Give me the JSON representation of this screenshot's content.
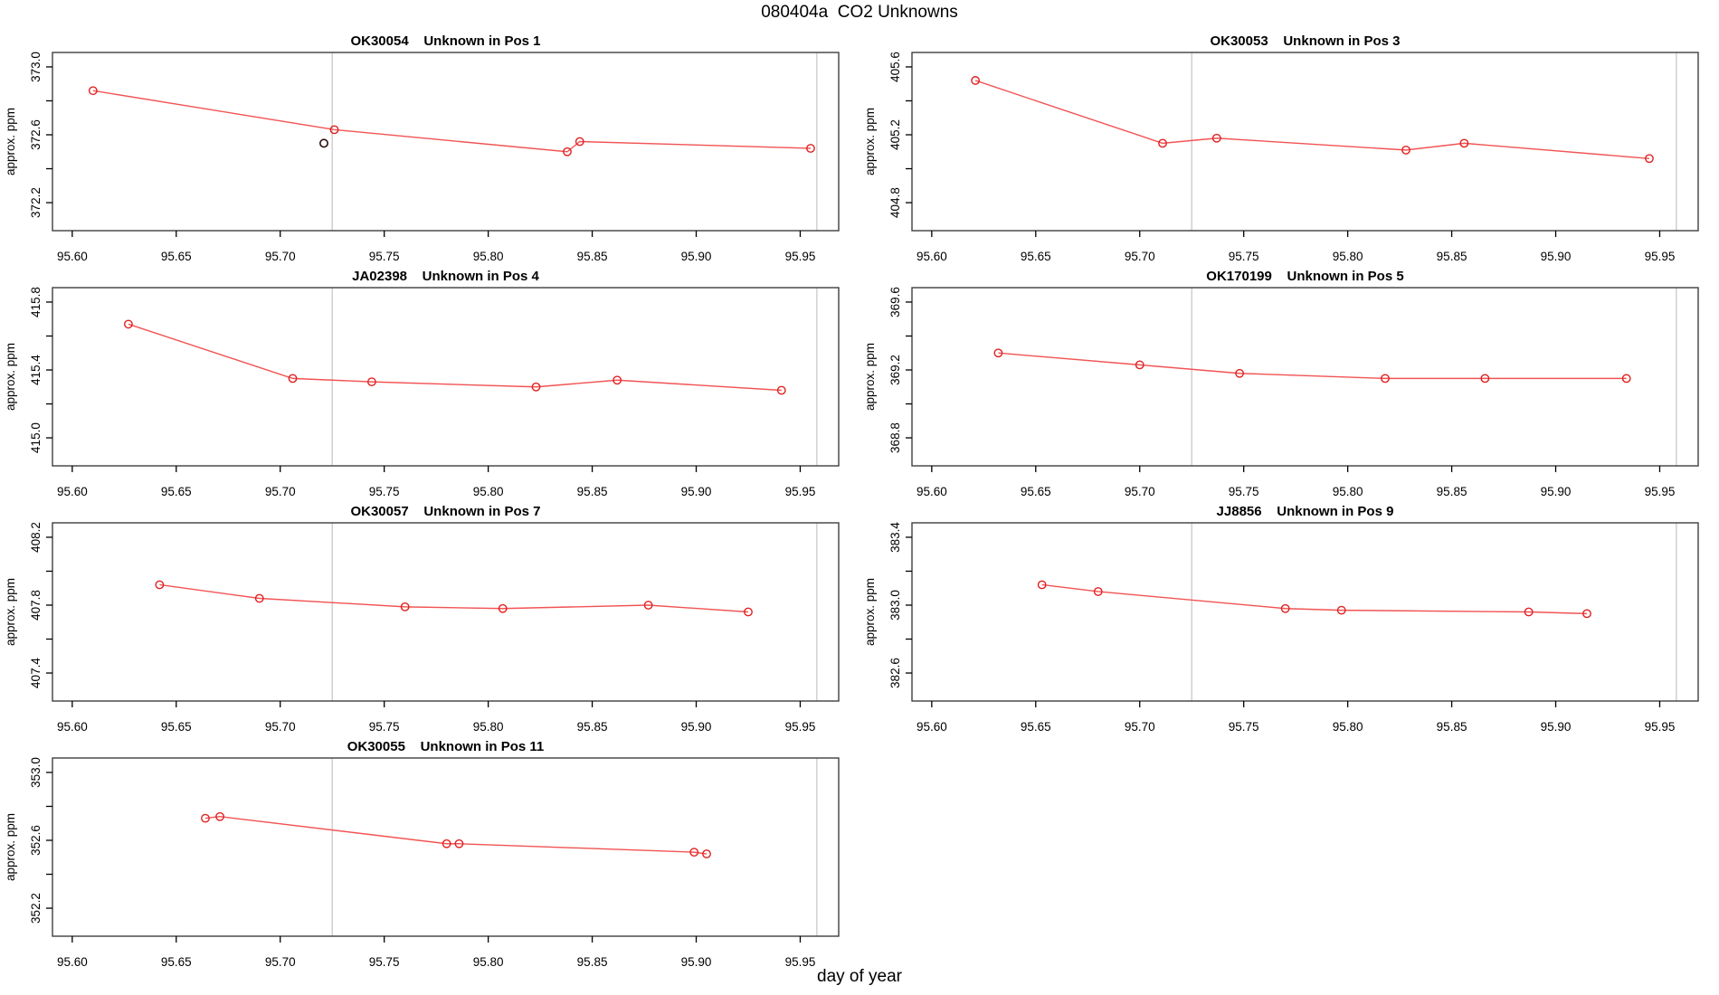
{
  "figure_title": "080404a  CO2 Unknowns",
  "xlabel": "day of year",
  "ylabel": "approx. ppm",
  "colors": {
    "series_line": "#f25353",
    "series_marker": "#e02020",
    "black_marker": "#2b1111",
    "reference_line": "#c9c9c9",
    "frame": "#3f3f3f",
    "text": "#000000"
  },
  "x_axis": {
    "lim": [
      95.5905,
      95.9685
    ],
    "ticks": [
      95.6,
      95.65,
      95.7,
      95.75,
      95.8,
      95.85,
      95.9,
      95.95
    ],
    "tick_labels": [
      "95.60",
      "95.65",
      "95.70",
      "95.75",
      "95.80",
      "95.85",
      "95.90",
      "95.95"
    ],
    "reference_lines": [
      95.725,
      95.958
    ]
  },
  "chart_data": [
    {
      "type": "line",
      "title_code": "OK30054",
      "title_text": "Unknown in Pos 1",
      "grid": [
        0,
        0
      ],
      "ylim": [
        372.035,
        373.085
      ],
      "yticks": [
        372.2,
        372.4,
        372.6,
        372.8,
        373.0
      ],
      "ytick_labels": [
        "372.2",
        "",
        "372.6",
        "",
        "373.0"
      ],
      "x": [
        95.61,
        95.726,
        95.838,
        95.844,
        95.955
      ],
      "y": [
        372.86,
        372.63,
        372.5,
        372.56,
        372.52
      ],
      "black_points": [
        [
          95.721,
          372.55
        ]
      ]
    },
    {
      "type": "line",
      "title_code": "OK30053",
      "title_text": "Unknown in Pos 3",
      "grid": [
        0,
        1
      ],
      "ylim": [
        404.635,
        405.685
      ],
      "yticks": [
        404.8,
        405.0,
        405.2,
        405.4,
        405.6
      ],
      "ytick_labels": [
        "404.8",
        "",
        "405.2",
        "",
        "405.6"
      ],
      "x": [
        95.621,
        95.711,
        95.737,
        95.828,
        95.856,
        95.945
      ],
      "y": [
        405.52,
        405.15,
        405.18,
        405.11,
        405.15,
        405.06
      ],
      "black_points": []
    },
    {
      "type": "line",
      "title_code": "JA02398",
      "title_text": "Unknown in Pos 4",
      "grid": [
        1,
        0
      ],
      "ylim": [
        414.835,
        415.885
      ],
      "yticks": [
        415.0,
        415.2,
        415.4,
        415.6,
        415.8
      ],
      "ytick_labels": [
        "415.0",
        "",
        "415.4",
        "",
        "415.8"
      ],
      "x": [
        95.627,
        95.706,
        95.744,
        95.823,
        95.862,
        95.941
      ],
      "y": [
        415.67,
        415.35,
        415.33,
        415.3,
        415.34,
        415.28
      ],
      "black_points": []
    },
    {
      "type": "line",
      "title_code": "OK170199",
      "title_text": "Unknown in Pos 5",
      "grid": [
        1,
        1
      ],
      "ylim": [
        368.635,
        369.685
      ],
      "yticks": [
        368.8,
        369.0,
        369.2,
        369.4,
        369.6
      ],
      "ytick_labels": [
        "368.8",
        "",
        "369.2",
        "",
        "369.6"
      ],
      "x": [
        95.632,
        95.7,
        95.748,
        95.818,
        95.866,
        95.934
      ],
      "y": [
        369.3,
        369.23,
        369.18,
        369.15,
        369.15,
        369.15
      ],
      "black_points": []
    },
    {
      "type": "line",
      "title_code": "OK30057",
      "title_text": "Unknown in Pos 7",
      "grid": [
        2,
        0
      ],
      "ylim": [
        407.235,
        408.285
      ],
      "yticks": [
        407.4,
        407.6,
        407.8,
        408.0,
        408.2
      ],
      "ytick_labels": [
        "407.4",
        "",
        "407.8",
        "",
        "408.2"
      ],
      "x": [
        95.642,
        95.69,
        95.76,
        95.807,
        95.877,
        95.925
      ],
      "y": [
        407.92,
        407.84,
        407.79,
        407.78,
        407.8,
        407.76
      ],
      "black_points": []
    },
    {
      "type": "line",
      "title_code": "JJ8856",
      "title_text": "Unknown in Pos 9",
      "grid": [
        2,
        1
      ],
      "ylim": [
        382.435,
        383.485
      ],
      "yticks": [
        382.6,
        382.8,
        383.0,
        383.2,
        383.4
      ],
      "ytick_labels": [
        "382.6",
        "",
        "383.0",
        "",
        "383.4"
      ],
      "x": [
        95.653,
        95.68,
        95.77,
        95.797,
        95.887,
        95.915
      ],
      "y": [
        383.12,
        383.08,
        382.98,
        382.97,
        382.96,
        382.95
      ],
      "black_points": []
    },
    {
      "type": "line",
      "title_code": "OK30055",
      "title_text": "Unknown in Pos 11",
      "grid": [
        3,
        0
      ],
      "ylim": [
        352.035,
        353.085
      ],
      "yticks": [
        352.2,
        352.4,
        352.6,
        352.8,
        353.0
      ],
      "ytick_labels": [
        "352.2",
        "",
        "352.6",
        "",
        "353.0"
      ],
      "x": [
        95.664,
        95.671,
        95.78,
        95.786,
        95.899,
        95.905
      ],
      "y": [
        352.73,
        352.74,
        352.58,
        352.58,
        352.53,
        352.52
      ],
      "black_points": []
    }
  ]
}
